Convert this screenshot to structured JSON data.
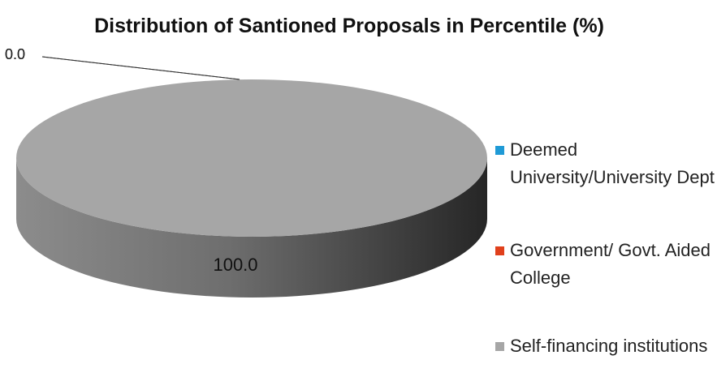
{
  "chart_data": {
    "type": "pie3d",
    "title": "Distribution of  Santioned Proposals in Percentile (%)",
    "series": [
      {
        "name": "Deemed University/University Dept",
        "color": "#1f9ad6",
        "values": [
          0
        ],
        "value_labels": [
          "0.0"
        ]
      },
      {
        "name": "Government/ Govt. Aided College",
        "color": "#e0401c",
        "values": [
          0
        ],
        "value_labels": [
          "0.0"
        ]
      },
      {
        "name": "Self-financing institutions",
        "color": "#a6a6a6",
        "values": [
          100
        ],
        "value_labels": [
          "100.0"
        ]
      }
    ],
    "legend": "right"
  }
}
